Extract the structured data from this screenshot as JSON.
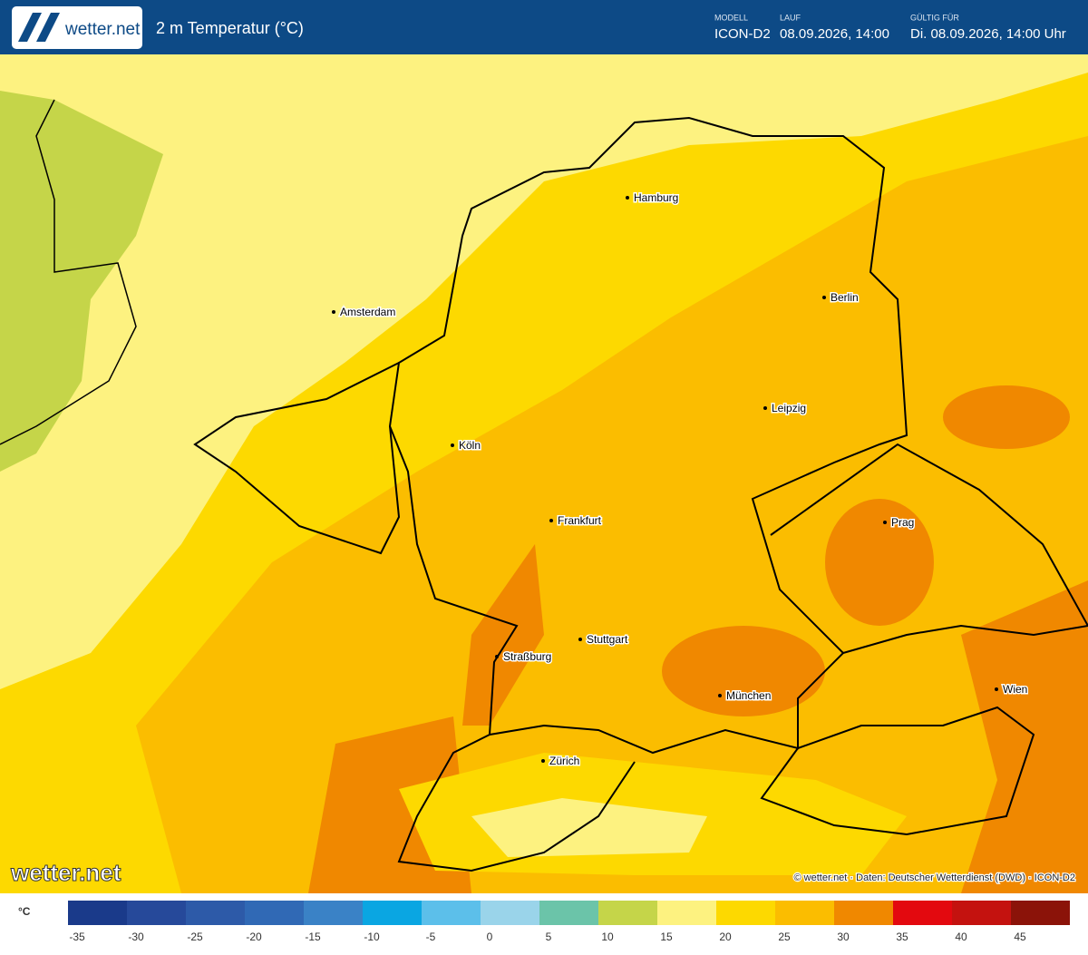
{
  "header": {
    "logo": "wetter.net",
    "title": "2 m Temperatur (°C)",
    "model_label": "MODELL",
    "model": "ICON-D2",
    "run_label": "LAUF",
    "run": "08.09.2026, 14:00",
    "valid_label": "GÜLTIG FÜR",
    "valid": "Di. 08.09.2026, 14:00 Uhr"
  },
  "cities": [
    "Hamburg",
    "Berlin",
    "Amsterdam",
    "Leipzig",
    "Köln",
    "Frankfurt",
    "Prag",
    "Stuttgart",
    "Straßburg",
    "München",
    "Wien",
    "Zürich"
  ],
  "watermark": "wetter.net",
  "credit": "© wetter.net · Daten: Deutscher Wetterdienst (DWD) · ICON-D2",
  "legend": {
    "unit": "°C",
    "ticks": [
      -35,
      -30,
      -25,
      -20,
      -15,
      -10,
      -5,
      0,
      5,
      10,
      15,
      20,
      25,
      30,
      35,
      40,
      45
    ],
    "colors": [
      "#1a3a8a",
      "#26499a",
      "#2d5aa8",
      "#3069b5",
      "#3a82c6",
      "#0aa6e2",
      "#5cbfea",
      "#9ad4ea",
      "#6bc4a9",
      "#c5d549",
      "#fdf280",
      "#fdd900",
      "#fbbd00",
      "#f08800",
      "#e3090f",
      "#c4120f",
      "#8b1309"
    ]
  }
}
